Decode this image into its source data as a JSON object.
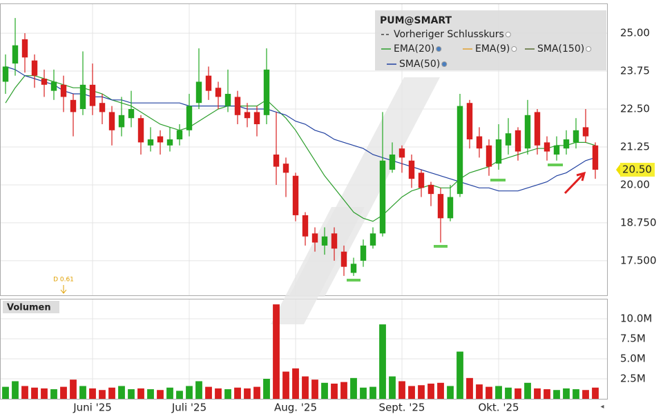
{
  "chart_data": [
    {
      "type": "candlestick",
      "title": "PUM@SMART",
      "categories": [
        null,
        null,
        null,
        null,
        null,
        null,
        null,
        null,
        null,
        "Juni '25",
        null,
        null,
        null,
        null,
        null,
        null,
        null,
        null,
        null,
        "Juli '25",
        null,
        null,
        null,
        null,
        null,
        null,
        null,
        null,
        null,
        null,
        "Aug. '25",
        null,
        null,
        null,
        null,
        null,
        null,
        null,
        null,
        null,
        null,
        "Sept. '25",
        null,
        null,
        null,
        null,
        null,
        null,
        null,
        null,
        null,
        "Okt. '25",
        null,
        null,
        null,
        null,
        null,
        null,
        null,
        null,
        null,
        null
      ],
      "open": [
        23.4,
        24.0,
        24.8,
        24.1,
        23.5,
        23.1,
        23.3,
        22.8,
        22.5,
        23.3,
        22.7,
        22.4,
        21.9,
        22.2,
        22.2,
        21.3,
        21.6,
        21.3,
        21.5,
        21.8,
        22.7,
        23.6,
        23.2,
        22.6,
        22.9,
        22.4,
        22.4,
        22.3,
        21.0,
        20.7,
        20.3,
        19.0,
        18.4,
        18.0,
        18.4,
        17.8,
        17.1,
        17.5,
        18.0,
        18.4,
        20.5,
        21.2,
        20.8,
        20.4,
        20.0,
        19.7,
        18.9,
        19.7,
        22.7,
        21.6,
        21.3,
        20.7,
        21.3,
        21.8,
        21.2,
        22.4,
        21.4,
        21.0,
        21.2,
        21.4,
        21.9,
        21.3
      ],
      "high": [
        24.3,
        25.5,
        25.0,
        24.3,
        23.8,
        23.8,
        23.6,
        23.0,
        24.4,
        24.0,
        23.0,
        22.6,
        22.9,
        23.1,
        22.3,
        21.9,
        21.8,
        21.9,
        22.0,
        23.0,
        24.5,
        23.9,
        23.4,
        23.8,
        23.1,
        22.7,
        22.6,
        24.5,
        22.4,
        20.9,
        20.4,
        19.1,
        18.6,
        18.6,
        18.6,
        18.0,
        17.6,
        18.2,
        18.6,
        22.4,
        21.4,
        21.3,
        21.0,
        20.5,
        20.1,
        19.9,
        20.0,
        23.0,
        22.8,
        21.9,
        21.5,
        22.0,
        22.2,
        21.9,
        22.8,
        22.5,
        21.6,
        21.6,
        21.8,
        22.2,
        22.5,
        21.4
      ],
      "low": [
        23.0,
        23.6,
        23.7,
        23.2,
        22.9,
        22.8,
        22.4,
        21.6,
        22.3,
        22.3,
        22.0,
        21.3,
        21.6,
        21.9,
        21.0,
        21.1,
        21.0,
        21.1,
        21.3,
        21.6,
        22.5,
        22.8,
        22.5,
        22.4,
        22.0,
        21.9,
        21.6,
        22.0,
        20.0,
        19.6,
        18.8,
        18.0,
        17.8,
        17.7,
        17.5,
        17.0,
        17.0,
        17.3,
        17.9,
        18.3,
        20.4,
        20.4,
        19.9,
        19.6,
        19.3,
        18.1,
        18.8,
        19.6,
        21.2,
        20.9,
        20.3,
        20.5,
        21.0,
        20.8,
        21.0,
        21.0,
        20.8,
        20.8,
        21.0,
        21.2,
        21.4,
        20.2
      ],
      "close": [
        23.9,
        24.6,
        24.2,
        23.6,
        23.3,
        23.4,
        22.9,
        22.4,
        23.3,
        22.6,
        22.4,
        21.8,
        22.3,
        22.5,
        21.4,
        21.5,
        21.4,
        21.5,
        21.8,
        22.6,
        23.4,
        23.1,
        22.9,
        23.0,
        22.3,
        22.2,
        22.0,
        23.8,
        20.6,
        20.4,
        19.0,
        18.3,
        18.1,
        18.3,
        17.9,
        17.3,
        17.4,
        18.0,
        18.4,
        20.8,
        21.0,
        20.9,
        20.2,
        19.9,
        19.7,
        18.9,
        19.6,
        22.6,
        21.5,
        21.2,
        20.6,
        21.5,
        21.7,
        21.1,
        22.3,
        21.3,
        21.1,
        21.3,
        21.5,
        21.8,
        21.6,
        20.5
      ],
      "up_color": "#22a822",
      "down_color": "#d81e1e",
      "series": [
        {
          "name": "Vorheriger Schlusskurs",
          "color": "#444444",
          "dashed": true
        },
        {
          "name": "EMA(20)",
          "color": "#2a9d2a",
          "values": [
            22.7,
            23.2,
            23.6,
            23.6,
            23.5,
            23.4,
            23.3,
            23.2,
            23.2,
            23.1,
            23.0,
            22.8,
            22.7,
            22.6,
            22.4,
            22.2,
            22.0,
            21.9,
            21.8,
            21.9,
            22.1,
            22.3,
            22.5,
            22.6,
            22.6,
            22.6,
            22.6,
            22.8,
            22.5,
            22.2,
            21.8,
            21.3,
            20.8,
            20.3,
            19.9,
            19.5,
            19.1,
            18.9,
            18.8,
            19.0,
            19.3,
            19.6,
            19.8,
            19.9,
            20.0,
            19.9,
            19.9,
            20.2,
            20.4,
            20.5,
            20.6,
            20.8,
            20.9,
            21.0,
            21.1,
            21.2,
            21.2,
            21.3,
            21.3,
            21.4,
            21.4,
            21.3
          ]
        },
        {
          "name": "EMA(9)",
          "color": "#e0a030"
        },
        {
          "name": "SMA(150)",
          "color": "#556b2f"
        },
        {
          "name": "SMA(50)",
          "color": "#2040a0",
          "values": [
            23.9,
            23.8,
            23.6,
            23.5,
            23.4,
            23.3,
            23.1,
            23.0,
            23.0,
            22.9,
            22.9,
            22.8,
            22.8,
            22.7,
            22.7,
            22.7,
            22.7,
            22.7,
            22.7,
            22.6,
            22.6,
            22.6,
            22.6,
            22.6,
            22.6,
            22.5,
            22.5,
            22.5,
            22.4,
            22.3,
            22.1,
            22.0,
            21.8,
            21.7,
            21.5,
            21.4,
            21.3,
            21.2,
            21.0,
            20.9,
            20.8,
            20.7,
            20.6,
            20.5,
            20.4,
            20.3,
            20.2,
            20.1,
            20.0,
            19.9,
            19.9,
            19.8,
            19.8,
            19.8,
            19.9,
            20.0,
            20.1,
            20.3,
            20.4,
            20.6,
            20.8,
            20.9
          ]
        }
      ],
      "ylim": [
        16.36,
        25.98
      ],
      "yticks": [
        {
          "value": 25,
          "label": "25.00"
        },
        {
          "value": 23.75,
          "label": "23.75"
        },
        {
          "value": 22.5,
          "label": "22.50"
        },
        {
          "value": 21.25,
          "label": "21.25"
        },
        {
          "value": 20,
          "label": "20.00"
        },
        {
          "value": 18.75,
          "label": "18.750"
        },
        {
          "value": 17.5,
          "label": "17.500"
        }
      ],
      "last_price": {
        "value": 20.5,
        "label": "20.50"
      },
      "annotation": "D 0.61",
      "grid": true
    },
    {
      "type": "bar",
      "title": "Volumen",
      "values": [
        1500000,
        2200000,
        1600000,
        1400000,
        1300000,
        1200000,
        1500000,
        2400000,
        1600000,
        1300000,
        1100000,
        1400000,
        1600000,
        1200000,
        1300000,
        1200000,
        1100000,
        1400000,
        1000000,
        1600000,
        2200000,
        1500000,
        1300000,
        1200000,
        1400000,
        1300000,
        1500000,
        2500000,
        11800000,
        3400000,
        3800000,
        2800000,
        2400000,
        2000000,
        1900000,
        2100000,
        2600000,
        1400000,
        1500000,
        9300000,
        2800000,
        2200000,
        1600000,
        1700000,
        1900000,
        2000000,
        1600000,
        5900000,
        2600000,
        1800000,
        1500000,
        1600000,
        1400000,
        1300000,
        2000000,
        1300000,
        1200000,
        1100000,
        1300000,
        1200000,
        1100000,
        1400000
      ],
      "ylim": [
        0,
        12500000
      ],
      "yticks": [
        {
          "value": 2500000,
          "label": "2.5M"
        },
        {
          "value": 5000000,
          "label": "5.0M"
        },
        {
          "value": 7500000,
          "label": "7.5M"
        },
        {
          "value": 10000000,
          "label": "10.0M"
        }
      ],
      "grid": true
    }
  ]
}
